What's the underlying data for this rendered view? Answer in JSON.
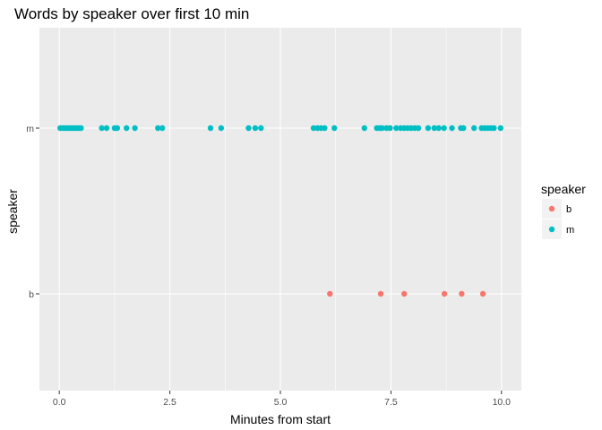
{
  "chart_data": {
    "type": "scatter",
    "title": "Words by speaker over first 10 min",
    "xlabel": "Minutes from start",
    "ylabel": "speaker",
    "xlim": [
      -0.45,
      10.45
    ],
    "x_ticks": [
      0,
      2.5,
      5,
      7.5,
      10
    ],
    "x_tick_labels": [
      "0.0",
      "2.5",
      "5.0",
      "7.5",
      "10.0"
    ],
    "categories": [
      "b",
      "m"
    ],
    "grid": true,
    "legend": {
      "title": "speaker",
      "position": "right",
      "entries": [
        {
          "label": "b",
          "color": "#F8766D"
        },
        {
          "label": "m",
          "color": "#00BFC4"
        }
      ]
    },
    "series": [
      {
        "name": "b",
        "category": "b",
        "color": "#F8766D",
        "x": [
          6.12,
          7.27,
          7.8,
          8.71,
          9.1,
          9.58
        ]
      },
      {
        "name": "m",
        "category": "m",
        "color": "#00BFC4",
        "x": [
          0.02,
          0.08,
          0.13,
          0.18,
          0.23,
          0.28,
          0.33,
          0.38,
          0.44,
          0.49,
          0.96,
          1.07,
          1.25,
          1.31,
          1.52,
          1.71,
          2.23,
          2.33,
          3.42,
          3.66,
          4.28,
          4.43,
          4.56,
          5.75,
          5.84,
          5.92,
          6.0,
          6.22,
          6.9,
          7.18,
          7.24,
          7.3,
          7.4,
          7.48,
          7.62,
          7.72,
          7.8,
          7.88,
          7.96,
          8.04,
          8.12,
          8.34,
          8.48,
          8.58,
          8.7,
          8.88,
          9.08,
          9.14,
          9.38,
          9.55,
          9.62,
          9.69,
          9.76,
          9.83,
          9.98
        ]
      }
    ]
  }
}
